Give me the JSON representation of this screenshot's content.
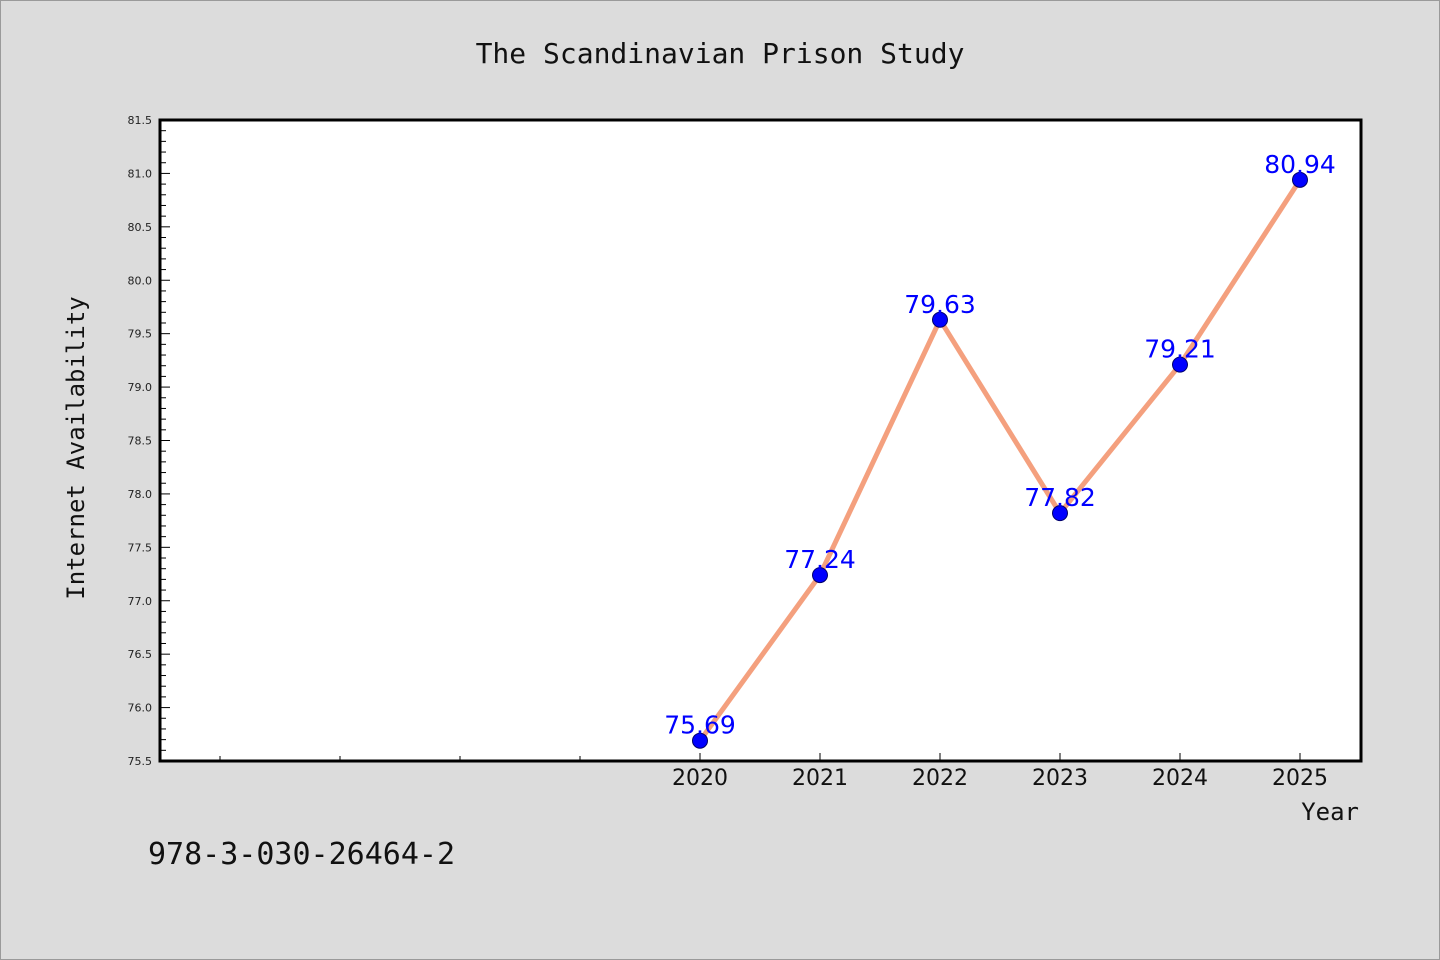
{
  "footer_code": "978-3-030-26464-2",
  "colors": {
    "background": "#dcdcdc",
    "plot_background": "#ffffff",
    "line": "#f4a07e",
    "marker": "#0000ff",
    "label": "#0000ff"
  },
  "chart_data": {
    "type": "line",
    "title": "The Scandinavian Prison Study",
    "xlabel": "Year",
    "ylabel": "Internet Availability",
    "x": [
      "2020",
      "2021",
      "2022",
      "2023",
      "2024",
      "2025"
    ],
    "series": [
      {
        "values": [
          75.69,
          77.24,
          79.63,
          77.82,
          79.21,
          80.94
        ]
      }
    ],
    "data_labels": [
      "75.69",
      "77.24",
      "79.63",
      "77.82",
      "79.21",
      "80.94"
    ],
    "ylim": [
      75.5,
      81.5
    ],
    "yticks": [
      "75.5",
      "76.0",
      "76.5",
      "77.0",
      "77.5",
      "78.0",
      "78.5",
      "79.0",
      "79.5",
      "80.0",
      "80.5",
      "81.0",
      "81.5"
    ],
    "grid": false,
    "legend": "none"
  }
}
